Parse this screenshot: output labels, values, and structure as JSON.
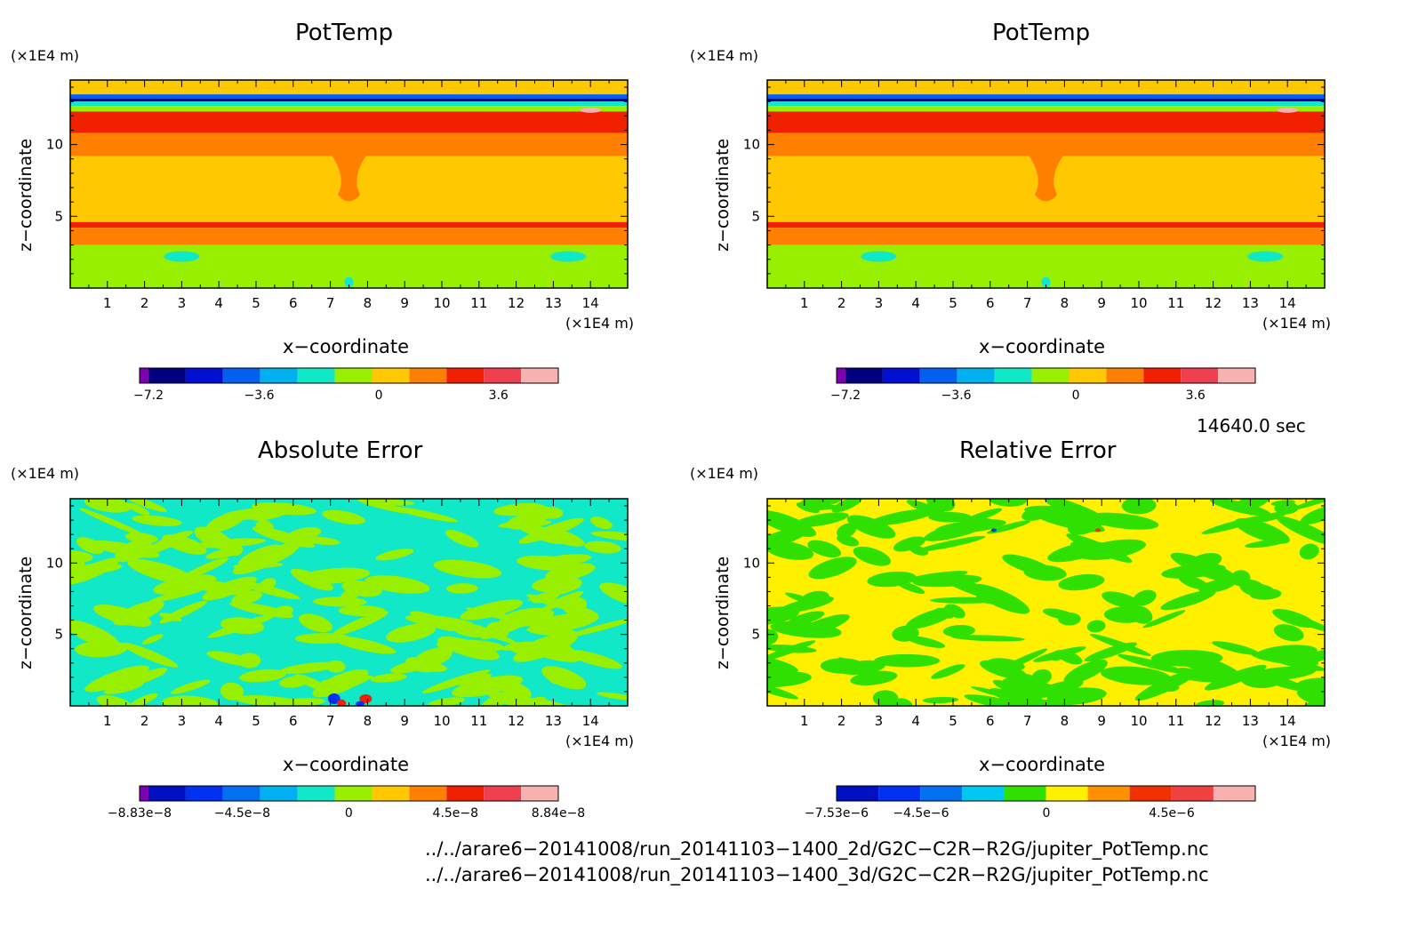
{
  "panels": [
    {
      "title": "PotTemp",
      "yunit": "(×1E4 m)",
      "xunit": "(×1E4 m)",
      "xlabel": "x−coordinate",
      "ylabel": "z−coordinate",
      "colorbar_ticks": [
        "−7.2",
        "−3.6",
        "0",
        "3.6"
      ]
    },
    {
      "title": "PotTemp",
      "yunit": "(×1E4 m)",
      "xunit": "(×1E4 m)",
      "xlabel": "x−coordinate",
      "ylabel": "z−coordinate",
      "colorbar_ticks": [
        "−7.2",
        "−3.6",
        "0",
        "3.6"
      ]
    },
    {
      "title": "Absolute Error",
      "yunit": "(×1E4 m)",
      "xunit": "(×1E4 m)",
      "xlabel": "x−coordinate",
      "ylabel": "z−coordinate",
      "colorbar_ticks": [
        "−8.83e−8",
        "−4.5e−8",
        "0",
        "4.5e−8",
        "8.84e−8"
      ]
    },
    {
      "title": "Relative Error",
      "yunit": "(×1E4 m)",
      "xunit": "(×1E4 m)",
      "xlabel": "x−coordinate",
      "ylabel": "z−coordinate",
      "colorbar_ticks": [
        "−7.53e−6",
        "−4.5e−6",
        "0",
        "4.5e−6"
      ]
    }
  ],
  "time_label": "14640.0 sec",
  "file_paths": [
    "../../arare6−20141008/run_20141103−1400_2d/G2C−C2R−R2G/jupiter_PotTemp.nc",
    "../../arare6−20141008/run_20141103−1400_3d/G2C−C2R−R2G/jupiter_PotTemp.nc"
  ],
  "chart_data": [
    {
      "type": "heatmap",
      "title": "PotTemp",
      "xlabel": "x−coordinate",
      "ylabel": "z−coordinate",
      "xlim": [
        0,
        15
      ],
      "ylim": [
        0,
        14.5
      ],
      "xticks": [
        1,
        2,
        3,
        4,
        5,
        6,
        7,
        8,
        9,
        10,
        11,
        12,
        13,
        14
      ],
      "yticks": [
        5,
        10
      ],
      "colorbar": {
        "range": [
          -7.2,
          5.4
        ],
        "ticks": [
          -7.2,
          -3.6,
          0,
          3.6
        ],
        "colors": [
          "#7a00b0",
          "#000080",
          "#0010d0",
          "#0060f0",
          "#00b0f0",
          "#10e8c8",
          "#98f000",
          "#ffc800",
          "#ff8000",
          "#f02000",
          "#f04050",
          "#f8b0b0"
        ]
      },
      "field": {
        "levels": [
          {
            "z": [
              13.5,
              14.5
            ],
            "value": "0 to 1.2"
          },
          {
            "z": [
              13,
              13.5
            ],
            "value": "−7.2 to −2.4"
          },
          {
            "z": [
              12.5,
              13
            ],
            "value": "−1.2 to 0"
          },
          {
            "z": [
              10.5,
              12.5
            ],
            "value": "2.4 to 4.8"
          },
          {
            "z": [
              9,
              10.5
            ],
            "value": "1.2 to 2.4"
          },
          {
            "z": [
              4.5,
              9
            ],
            "value": "0 to 1.2"
          },
          {
            "z": [
              0,
              3
            ],
            "value": "−1.2 to 0"
          }
        ]
      }
    },
    {
      "type": "heatmap",
      "title": "PotTemp",
      "xlabel": "x−coordinate",
      "ylabel": "z−coordinate",
      "xlim": [
        0,
        15
      ],
      "ylim": [
        0,
        14.5
      ],
      "xticks": [
        1,
        2,
        3,
        4,
        5,
        6,
        7,
        8,
        9,
        10,
        11,
        12,
        13,
        14
      ],
      "yticks": [
        5,
        10
      ],
      "colorbar": {
        "range": [
          -7.2,
          5.4
        ],
        "ticks": [
          -7.2,
          -3.6,
          0,
          3.6
        ],
        "colors": [
          "#7a00b0",
          "#000080",
          "#0010d0",
          "#0060f0",
          "#00b0f0",
          "#10e8c8",
          "#98f000",
          "#ffc800",
          "#ff8000",
          "#f02000",
          "#f04050",
          "#f8b0b0"
        ]
      }
    },
    {
      "type": "heatmap",
      "title": "Absolute Error",
      "xlabel": "x−coordinate",
      "ylabel": "z−coordinate",
      "xlim": [
        0,
        15
      ],
      "ylim": [
        0,
        14.5
      ],
      "xticks": [
        1,
        2,
        3,
        4,
        5,
        6,
        7,
        8,
        9,
        10,
        11,
        12,
        13,
        14
      ],
      "yticks": [
        5,
        10
      ],
      "colorbar": {
        "range": [
          -8.83e-08,
          8.84e-08
        ],
        "ticks": [
          -8.83e-08,
          -4.5e-08,
          0,
          4.5e-08,
          8.84e-08
        ],
        "colors": [
          "#7a00b0",
          "#0010c0",
          "#0030f0",
          "#0070f0",
          "#00b0f0",
          "#10e8c8",
          "#98f000",
          "#ffc800",
          "#ff8000",
          "#f02000",
          "#f04050",
          "#f8b0b0"
        ]
      }
    },
    {
      "type": "heatmap",
      "title": "Relative Error",
      "xlabel": "x−coordinate",
      "ylabel": "z−coordinate",
      "xlim": [
        0,
        15
      ],
      "ylim": [
        0,
        14.5
      ],
      "xticks": [
        1,
        2,
        3,
        4,
        5,
        6,
        7,
        8,
        9,
        10,
        11,
        12,
        13,
        14
      ],
      "yticks": [
        5,
        10
      ],
      "colorbar": {
        "range": [
          -7.53e-06,
          7.5e-06
        ],
        "ticks": [
          -7.53e-06,
          -4.5e-06,
          0,
          4.5e-06
        ],
        "colors": [
          "#0010c0",
          "#0030f0",
          "#0070f0",
          "#00c8f0",
          "#30e000",
          "#fff000",
          "#ff9000",
          "#f03000",
          "#f04040",
          "#f8b0b0"
        ]
      }
    }
  ]
}
